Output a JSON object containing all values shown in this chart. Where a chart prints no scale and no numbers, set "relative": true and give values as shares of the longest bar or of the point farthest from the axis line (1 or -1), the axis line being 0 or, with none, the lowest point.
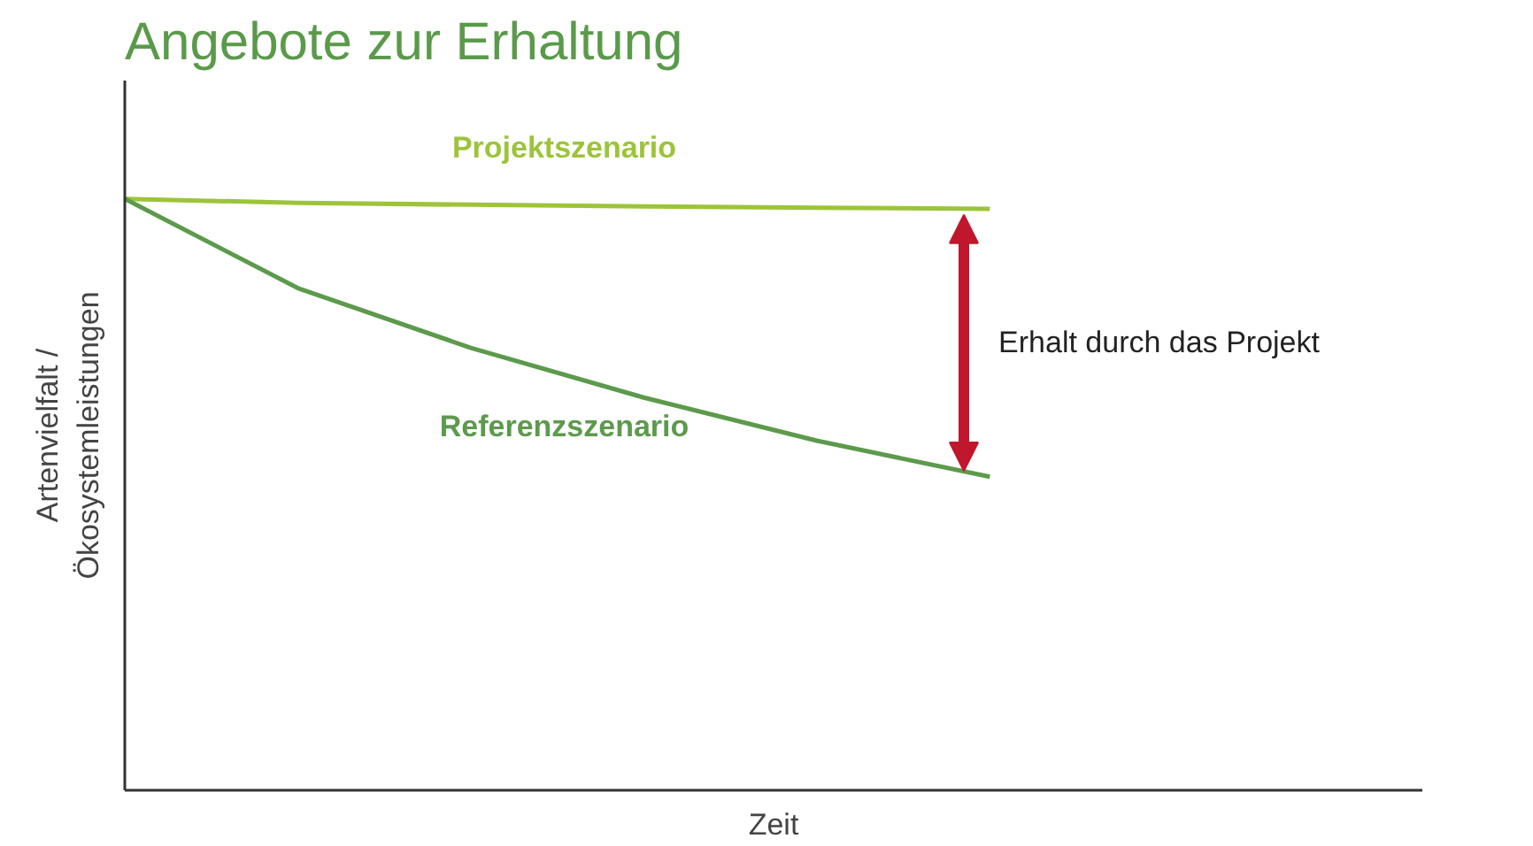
{
  "chart_data": {
    "type": "line",
    "title": "Angebote zur Erhaltung",
    "xlabel": "Zeit",
    "ylabel": "Artenvielfalt /\nÖkosystemleistungen",
    "relative": true,
    "categories": [
      null,
      null,
      null,
      null,
      null,
      null
    ],
    "series": [
      {
        "name": "Projektszenario",
        "color": "#9cc43a",
        "values": [
          1,
          0.993,
          0.99,
          0.987,
          0.985,
          0.983
        ]
      },
      {
        "name": "Referenzszenario",
        "color": "#5c9a4c",
        "values": [
          1,
          0.849,
          0.748,
          0.664,
          0.591,
          0.53
        ]
      }
    ],
    "annotations": [
      "Erhalt durch das Projekt"
    ]
  }
}
